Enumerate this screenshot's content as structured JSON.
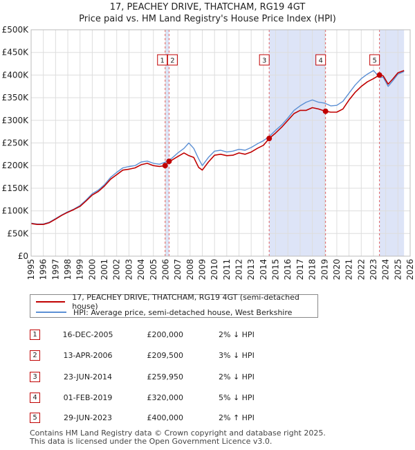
{
  "title": {
    "line1": "17, PEACHEY DRIVE, THATCHAM, RG19 4GT",
    "line2": "Price paid vs. HM Land Registry's House Price Index (HPI)"
  },
  "colors": {
    "price_line": "#c00000",
    "hpi_line": "#5b8fd4",
    "shade": "#dde4f7",
    "vline": "#e06060",
    "grid": "#dddddd",
    "marker": "#c00000"
  },
  "legend": {
    "price_label": "17, PEACHEY DRIVE, THATCHAM, RG19 4GT (semi-detached house)",
    "hpi_label": "HPI: Average price, semi-detached house, West Berkshire"
  },
  "transactions": [
    {
      "num": "1",
      "date": "16-DEC-2005",
      "price": "£200,000",
      "hpi": "2% ↓ HPI"
    },
    {
      "num": "2",
      "date": "13-APR-2006",
      "price": "£209,500",
      "hpi": "3% ↓ HPI"
    },
    {
      "num": "3",
      "date": "23-JUN-2014",
      "price": "£259,950",
      "hpi": "2% ↓ HPI"
    },
    {
      "num": "4",
      "date": "01-FEB-2019",
      "price": "£320,000",
      "hpi": "5% ↓ HPI"
    },
    {
      "num": "5",
      "date": "29-JUN-2023",
      "price": "£400,000",
      "hpi": "2% ↑ HPI"
    }
  ],
  "footer": {
    "line1": "Contains HM Land Registry data © Crown copyright and database right 2025.",
    "line2": "This data is licensed under the Open Government Licence v3.0."
  },
  "chart_data": {
    "type": "line",
    "xlabel": "",
    "ylabel": "",
    "xlim": [
      1995,
      2026
    ],
    "ylim": [
      0,
      500000
    ],
    "grid": true,
    "legend_position": "below-chart",
    "x_ticks": [
      "1995",
      "1996",
      "1997",
      "1998",
      "1999",
      "2000",
      "2001",
      "2002",
      "2003",
      "2004",
      "2005",
      "2006",
      "2007",
      "2008",
      "2009",
      "2010",
      "2011",
      "2012",
      "2013",
      "2014",
      "2015",
      "2016",
      "2017",
      "2018",
      "2019",
      "2020",
      "2021",
      "2022",
      "2023",
      "2024",
      "2025",
      "2026"
    ],
    "y_ticks": [
      {
        "value": 0,
        "label": "£0"
      },
      {
        "value": 50000,
        "label": "£50K"
      },
      {
        "value": 100000,
        "label": "£100K"
      },
      {
        "value": 150000,
        "label": "£150K"
      },
      {
        "value": 200000,
        "label": "£200K"
      },
      {
        "value": 250000,
        "label": "£250K"
      },
      {
        "value": 300000,
        "label": "£300K"
      },
      {
        "value": 350000,
        "label": "£350K"
      },
      {
        "value": 400000,
        "label": "£400K"
      },
      {
        "value": 450000,
        "label": "£450K"
      },
      {
        "value": 500000,
        "label": "£500K"
      }
    ],
    "shaded_ranges": [
      [
        2005.96,
        2006.28
      ],
      [
        2014.47,
        2019.08
      ],
      [
        2023.49,
        2025.5
      ]
    ],
    "series": [
      {
        "name": "17, PEACHEY DRIVE, THATCHAM, RG19 4GT (semi-detached house)",
        "x": [
          1995.0,
          1995.5,
          1996.0,
          1996.5,
          1997.0,
          1997.5,
          1998.0,
          1998.5,
          1999.0,
          1999.5,
          2000.0,
          2000.5,
          2001.0,
          2001.5,
          2002.0,
          2002.5,
          2003.0,
          2003.5,
          2004.0,
          2004.5,
          2005.0,
          2005.5,
          2005.96,
          2006.28,
          2006.5,
          2007.0,
          2007.5,
          2007.9,
          2008.3,
          2008.7,
          2009.0,
          2009.5,
          2010.0,
          2010.5,
          2011.0,
          2011.5,
          2012.0,
          2012.5,
          2013.0,
          2013.5,
          2014.0,
          2014.47,
          2015.0,
          2015.5,
          2016.0,
          2016.5,
          2017.0,
          2017.5,
          2018.0,
          2018.5,
          2019.08,
          2019.5,
          2020.0,
          2020.5,
          2021.0,
          2021.5,
          2022.0,
          2022.5,
          2023.0,
          2023.49,
          2023.8,
          2024.2,
          2024.6,
          2025.0,
          2025.5
        ],
        "values": [
          72000,
          70000,
          70000,
          74000,
          82000,
          90000,
          97000,
          103000,
          110000,
          122000,
          135000,
          143000,
          155000,
          170000,
          180000,
          190000,
          192000,
          195000,
          202000,
          205000,
          200000,
          198000,
          200000,
          209500,
          212000,
          220000,
          228000,
          222000,
          218000,
          196000,
          190000,
          208000,
          223000,
          225000,
          222000,
          223000,
          228000,
          225000,
          230000,
          238000,
          245000,
          259950,
          272000,
          285000,
          300000,
          315000,
          322000,
          322000,
          328000,
          325000,
          320000,
          318000,
          318000,
          325000,
          345000,
          362000,
          375000,
          385000,
          392000,
          400000,
          398000,
          380000,
          392000,
          405000,
          410000
        ]
      },
      {
        "name": "HPI: Average price, semi-detached house, West Berkshire",
        "x": [
          1995.0,
          1995.5,
          1996.0,
          1996.5,
          1997.0,
          1997.5,
          1998.0,
          1998.5,
          1999.0,
          1999.5,
          2000.0,
          2000.5,
          2001.0,
          2001.5,
          2002.0,
          2002.5,
          2003.0,
          2003.5,
          2004.0,
          2004.5,
          2005.0,
          2005.5,
          2006.0,
          2006.5,
          2007.0,
          2007.5,
          2007.9,
          2008.3,
          2008.7,
          2009.0,
          2009.5,
          2010.0,
          2010.5,
          2011.0,
          2011.5,
          2012.0,
          2012.5,
          2013.0,
          2013.5,
          2014.0,
          2014.5,
          2015.0,
          2015.5,
          2016.0,
          2016.5,
          2017.0,
          2017.5,
          2018.0,
          2018.5,
          2019.0,
          2019.5,
          2020.0,
          2020.5,
          2021.0,
          2021.5,
          2022.0,
          2022.5,
          2023.0,
          2023.5,
          2023.8,
          2024.2,
          2024.6,
          2025.0,
          2025.5
        ],
        "values": [
          73000,
          71000,
          71000,
          75000,
          83000,
          91000,
          98000,
          104000,
          112000,
          124000,
          138000,
          146000,
          158000,
          174000,
          185000,
          195000,
          198000,
          200000,
          208000,
          210000,
          205000,
          203000,
          208000,
          216000,
          228000,
          238000,
          250000,
          238000,
          215000,
          200000,
          218000,
          232000,
          234000,
          230000,
          232000,
          236000,
          234000,
          240000,
          248000,
          255000,
          265000,
          278000,
          290000,
          305000,
          322000,
          332000,
          340000,
          345000,
          340000,
          338000,
          332000,
          333000,
          342000,
          360000,
          378000,
          392000,
          402000,
          410000,
          395000,
          395000,
          375000,
          388000,
          402000,
          408000
        ]
      }
    ],
    "markers": [
      {
        "label": "1",
        "x": 2005.96,
        "y": 200000
      },
      {
        "label": "2",
        "x": 2006.28,
        "y": 209500
      },
      {
        "label": "3",
        "x": 2014.47,
        "y": 259950
      },
      {
        "label": "4",
        "x": 2019.08,
        "y": 320000
      },
      {
        "label": "5",
        "x": 2023.49,
        "y": 400000
      }
    ]
  }
}
